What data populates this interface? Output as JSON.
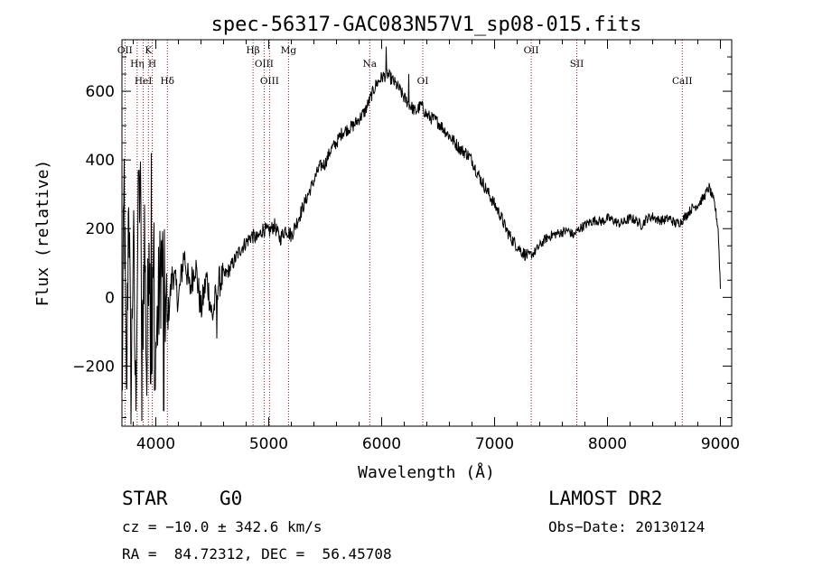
{
  "chart_data": {
    "type": "line",
    "title": "spec-56317-GAC083N57V1_sp08-015.fits",
    "xlabel": "Wavelength (Å)",
    "ylabel": "Flux (relative)",
    "xlim": [
      3700,
      9100
    ],
    "ylim": [
      -375,
      750
    ],
    "xticks": [
      4000,
      5000,
      6000,
      7000,
      8000,
      9000
    ],
    "yticks": [
      -200,
      0,
      200,
      400,
      600
    ],
    "grid": false,
    "line_color": "#000000",
    "marker_color": "#8b0000",
    "lines": [
      {
        "name": "OII",
        "x": 3727
      },
      {
        "name": "Hη",
        "x": 3835
      },
      {
        "name": "HeI",
        "x": 3889
      },
      {
        "name": "K",
        "x": 3934
      },
      {
        "name": "H",
        "x": 3969
      },
      {
        "name": "Hδ",
        "x": 4102
      },
      {
        "name": "Hβ",
        "x": 4861
      },
      {
        "name": "OIII",
        "x": 4959
      },
      {
        "name": "OIII",
        "x": 5007
      },
      {
        "name": "Mg",
        "x": 5175
      },
      {
        "name": "Na",
        "x": 5894
      },
      {
        "name": "OI",
        "x": 6364
      },
      {
        "name": "OII",
        "x": 7325
      },
      {
        "name": "SII",
        "x": 7728
      },
      {
        "name": "CaII",
        "x": 8662
      }
    ],
    "anchors": [
      [
        3700,
        -330
      ],
      [
        3720,
        340
      ],
      [
        3740,
        -350
      ],
      [
        3760,
        360
      ],
      [
        3780,
        -330
      ],
      [
        3800,
        200
      ],
      [
        3820,
        -300
      ],
      [
        3840,
        150
      ],
      [
        3860,
        360
      ],
      [
        3880,
        -150
      ],
      [
        3900,
        200
      ],
      [
        3920,
        -250
      ],
      [
        3940,
        250
      ],
      [
        3960,
        -280
      ],
      [
        3980,
        150
      ],
      [
        4000,
        -150
      ],
      [
        4050,
        120
      ],
      [
        4100,
        -80
      ],
      [
        4150,
        80
      ],
      [
        4200,
        -10
      ],
      [
        4250,
        130
      ],
      [
        4300,
        20
      ],
      [
        4350,
        100
      ],
      [
        4400,
        -40
      ],
      [
        4450,
        60
      ],
      [
        4500,
        -60
      ],
      [
        4550,
        40
      ],
      [
        4600,
        60
      ],
      [
        4650,
        80
      ],
      [
        4700,
        110
      ],
      [
        4750,
        140
      ],
      [
        4800,
        160
      ],
      [
        4850,
        180
      ],
      [
        4900,
        170
      ],
      [
        4950,
        200
      ],
      [
        5000,
        190
      ],
      [
        5050,
        210
      ],
      [
        5100,
        170
      ],
      [
        5150,
        200
      ],
      [
        5200,
        180
      ],
      [
        5250,
        220
      ],
      [
        5300,
        260
      ],
      [
        5350,
        300
      ],
      [
        5400,
        340
      ],
      [
        5450,
        380
      ],
      [
        5500,
        390
      ],
      [
        5550,
        430
      ],
      [
        5600,
        450
      ],
      [
        5650,
        480
      ],
      [
        5700,
        490
      ],
      [
        5750,
        500
      ],
      [
        5800,
        520
      ],
      [
        5850,
        540
      ],
      [
        5900,
        580
      ],
      [
        5950,
        620
      ],
      [
        6000,
        640
      ],
      [
        6050,
        650
      ],
      [
        6100,
        630
      ],
      [
        6150,
        610
      ],
      [
        6200,
        580
      ],
      [
        6250,
        560
      ],
      [
        6300,
        540
      ],
      [
        6350,
        560
      ],
      [
        6400,
        530
      ],
      [
        6450,
        520
      ],
      [
        6500,
        510
      ],
      [
        6550,
        490
      ],
      [
        6600,
        470
      ],
      [
        6650,
        450
      ],
      [
        6700,
        430
      ],
      [
        6750,
        420
      ],
      [
        6800,
        400
      ],
      [
        6850,
        360
      ],
      [
        6900,
        330
      ],
      [
        6950,
        300
      ],
      [
        7000,
        270
      ],
      [
        7050,
        240
      ],
      [
        7100,
        200
      ],
      [
        7150,
        170
      ],
      [
        7200,
        150
      ],
      [
        7250,
        130
      ],
      [
        7300,
        120
      ],
      [
        7350,
        130
      ],
      [
        7400,
        150
      ],
      [
        7450,
        170
      ],
      [
        7500,
        180
      ],
      [
        7550,
        185
      ],
      [
        7600,
        190
      ],
      [
        7650,
        195
      ],
      [
        7700,
        180
      ],
      [
        7750,
        200
      ],
      [
        7800,
        210
      ],
      [
        7850,
        220
      ],
      [
        7900,
        225
      ],
      [
        7950,
        220
      ],
      [
        8000,
        230
      ],
      [
        8050,
        225
      ],
      [
        8100,
        215
      ],
      [
        8150,
        220
      ],
      [
        8200,
        230
      ],
      [
        8250,
        225
      ],
      [
        8300,
        210
      ],
      [
        8350,
        230
      ],
      [
        8400,
        235
      ],
      [
        8450,
        225
      ],
      [
        8500,
        225
      ],
      [
        8550,
        230
      ],
      [
        8600,
        215
      ],
      [
        8650,
        220
      ],
      [
        8700,
        240
      ],
      [
        8750,
        260
      ],
      [
        8800,
        270
      ],
      [
        8850,
        290
      ],
      [
        8900,
        320
      ],
      [
        8950,
        270
      ],
      [
        8980,
        200
      ],
      [
        9000,
        30
      ]
    ],
    "spikes": [
      {
        "x": 3850,
        "y": 370
      },
      {
        "x": 3875,
        "y": -360
      },
      {
        "x": 3960,
        "y": 420
      },
      {
        "x": 3990,
        "y": -270
      },
      {
        "x": 4070,
        "y": -330
      },
      {
        "x": 4540,
        "y": -120
      },
      {
        "x": 6040,
        "y": 730
      },
      {
        "x": 6240,
        "y": 650
      }
    ]
  },
  "footer": {
    "object": "STAR",
    "subclass": "G0",
    "survey": "LAMOST DR2",
    "cz": "cz = −10.0 ± 342.6 km/s",
    "obs_date": "Obs−Date: 20130124",
    "coords": "RA =  84.72312, DEC =  56.45708"
  }
}
